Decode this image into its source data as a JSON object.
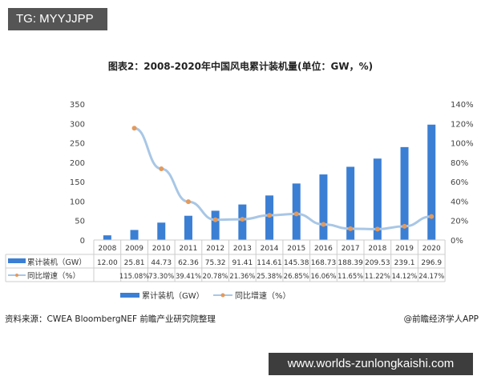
{
  "overlay": {
    "top_left_tag": "TG: MYYJJPP",
    "bottom_right_url": "www.worlds-zunlongkaishi.com"
  },
  "chart_data": {
    "type": "bar+line",
    "title": "图表2：2008-2020年中国风电累计装机量(单位：GW，%)",
    "categories": [
      "2008",
      "2009",
      "2010",
      "2011",
      "2012",
      "2013",
      "2014",
      "2015",
      "2016",
      "2017",
      "2018",
      "2019",
      "2020"
    ],
    "series": [
      {
        "name": "累计装机（GW）",
        "type": "bar",
        "axis": "left",
        "color": "#3b7fd4",
        "values": [
          12.0,
          25.81,
          44.73,
          62.36,
          75.32,
          91.41,
          114.61,
          145.38,
          168.73,
          188.39,
          209.53,
          239.1,
          296.9
        ],
        "labels": [
          "12.00",
          "25.81",
          "44.73",
          "62.36",
          "75.32",
          "91.41",
          "114.61",
          "145.38",
          "168.73",
          "188.39",
          "209.53",
          "239.1",
          "296.9"
        ]
      },
      {
        "name": "同比增速（%）",
        "type": "line",
        "axis": "right",
        "color": "#a9c7e6",
        "marker_color": "#e39a5c",
        "values": [
          null,
          115.08,
          73.3,
          39.41,
          20.78,
          21.36,
          25.38,
          26.85,
          16.06,
          11.65,
          11.22,
          14.12,
          24.17
        ],
        "labels": [
          "",
          "115.08%",
          "73.30%",
          "39.41%",
          "20.78%",
          "21.36%",
          "25.38%",
          "26.85%",
          "16.06%",
          "11.65%",
          "11.22%",
          "14.12%",
          "24.17%"
        ]
      }
    ],
    "left_axis": {
      "ylim": [
        0,
        350
      ],
      "ticks": [
        "0",
        "50",
        "100",
        "150",
        "200",
        "250",
        "300",
        "350"
      ]
    },
    "right_axis": {
      "ylim": [
        0,
        140
      ],
      "ticks": [
        "0%",
        "20%",
        "40%",
        "60%",
        "80%",
        "100%",
        "120%",
        "140%"
      ]
    },
    "grid": false,
    "legend": "bottom",
    "source": "资料来源：CWEA BloombergNEF 前瞻产业研究院整理",
    "credit": "@前瞻经济学人APP"
  }
}
